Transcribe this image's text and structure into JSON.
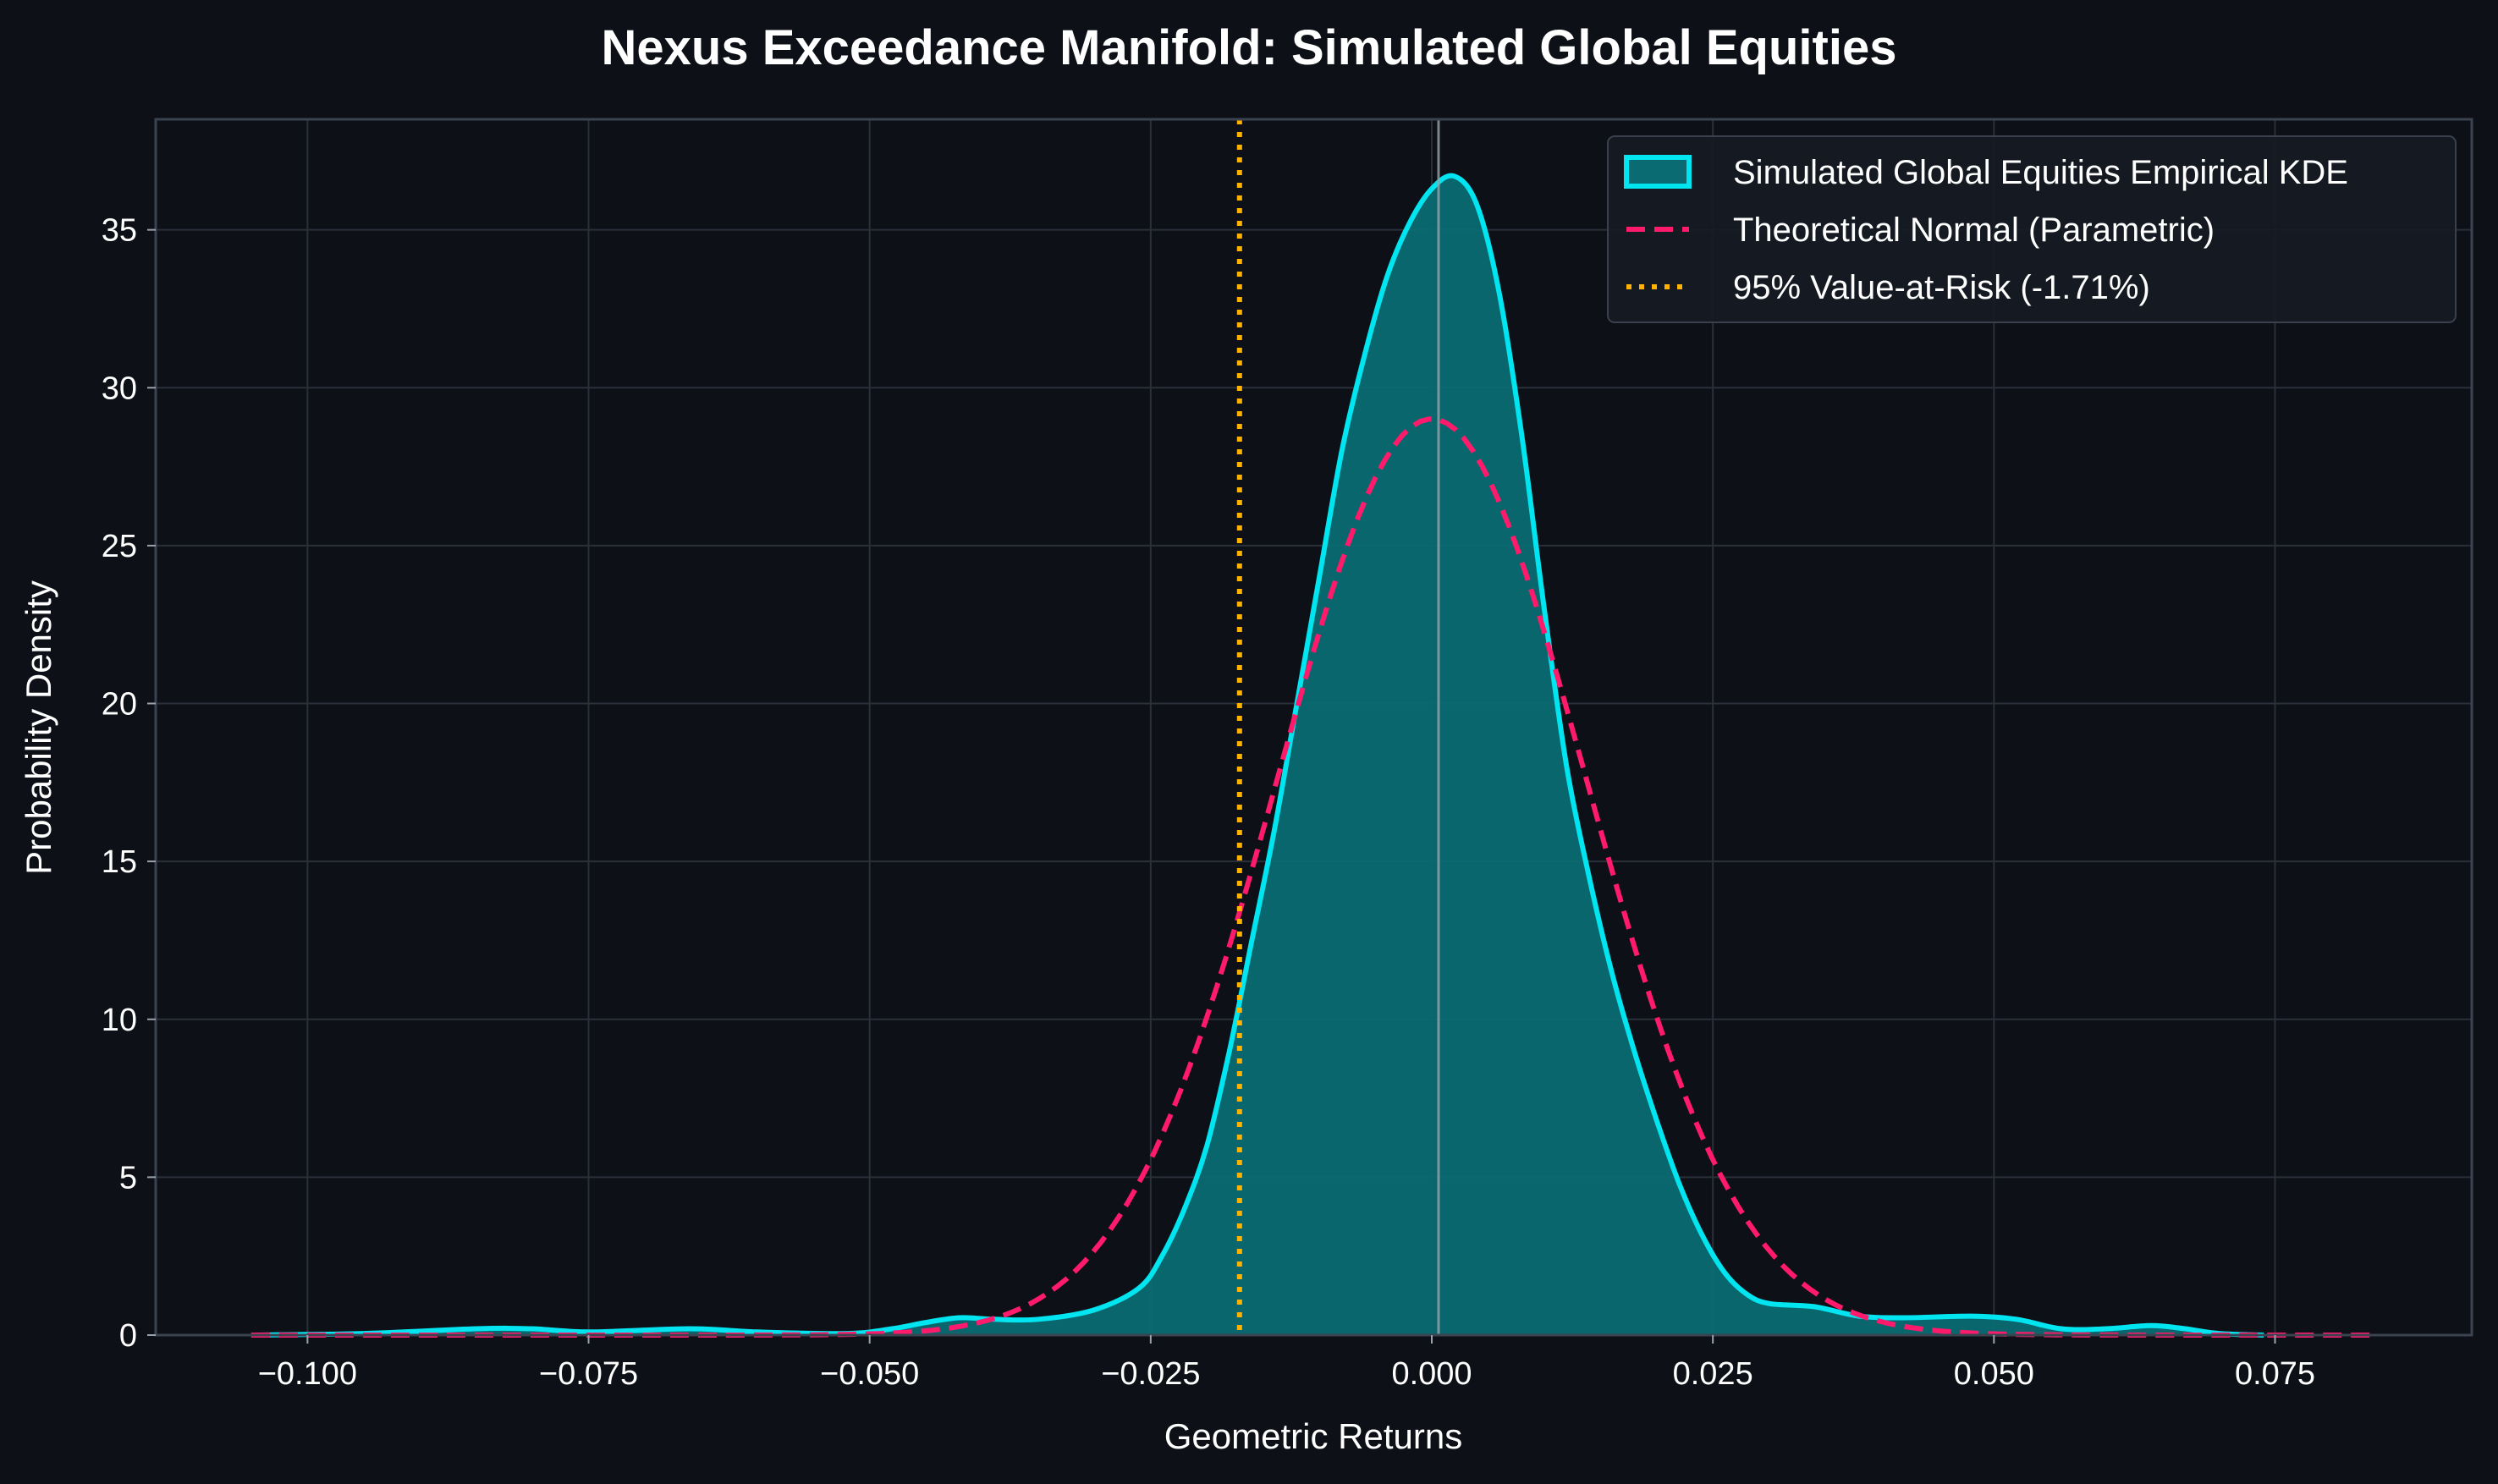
{
  "chart_data": {
    "type": "area",
    "title": "Nexus Exceedance Manifold: Simulated Global Equities",
    "xlabel": "Geometric Returns",
    "ylabel": "Probability Density",
    "xlim": [
      -0.1135,
      0.0925
    ],
    "ylim": [
      0,
      38.5
    ],
    "x_ticks": [
      -0.1,
      -0.075,
      -0.05,
      -0.025,
      0.0,
      0.025,
      0.05,
      0.075
    ],
    "x_tick_labels": [
      "−0.100",
      "−0.075",
      "−0.050",
      "−0.025",
      "0.000",
      "0.025",
      "0.050",
      "0.075"
    ],
    "y_ticks": [
      0,
      5,
      10,
      15,
      20,
      25,
      30,
      35
    ],
    "y_tick_labels": [
      "0",
      "5",
      "10",
      "15",
      "20",
      "25",
      "30",
      "35"
    ],
    "grid": true,
    "legend_position": "top-right",
    "series": [
      {
        "name": "Simulated Global Equities Empirical KDE",
        "kind": "kde_area",
        "color": "#00e5f0",
        "fill": "#0a6b72",
        "points": [
          [
            -0.105,
            0.0
          ],
          [
            -0.095,
            0.05
          ],
          [
            -0.085,
            0.2
          ],
          [
            -0.08,
            0.2
          ],
          [
            -0.075,
            0.1
          ],
          [
            -0.066,
            0.2
          ],
          [
            -0.06,
            0.1
          ],
          [
            -0.052,
            0.05
          ],
          [
            -0.048,
            0.2
          ],
          [
            -0.045,
            0.4
          ],
          [
            -0.042,
            0.55
          ],
          [
            -0.039,
            0.5
          ],
          [
            -0.035,
            0.5
          ],
          [
            -0.03,
            0.8
          ],
          [
            -0.026,
            1.5
          ],
          [
            -0.024,
            2.5
          ],
          [
            -0.022,
            4.0
          ],
          [
            -0.02,
            6.0
          ],
          [
            -0.018,
            9.0
          ],
          [
            -0.016,
            12.5
          ],
          [
            -0.014,
            16.0
          ],
          [
            -0.012,
            20.0
          ],
          [
            -0.01,
            24.0
          ],
          [
            -0.008,
            28.0
          ],
          [
            -0.006,
            31.0
          ],
          [
            -0.004,
            33.5
          ],
          [
            -0.002,
            35.2
          ],
          [
            0.0,
            36.3
          ],
          [
            0.002,
            36.7
          ],
          [
            0.004,
            35.8
          ],
          [
            0.006,
            33.0
          ],
          [
            0.008,
            28.5
          ],
          [
            0.01,
            23.0
          ],
          [
            0.012,
            18.0
          ],
          [
            0.014,
            14.5
          ],
          [
            0.016,
            11.5
          ],
          [
            0.018,
            9.0
          ],
          [
            0.02,
            6.8
          ],
          [
            0.022,
            4.8
          ],
          [
            0.024,
            3.2
          ],
          [
            0.026,
            2.0
          ],
          [
            0.028,
            1.3
          ],
          [
            0.03,
            1.0
          ],
          [
            0.034,
            0.9
          ],
          [
            0.038,
            0.6
          ],
          [
            0.042,
            0.55
          ],
          [
            0.048,
            0.6
          ],
          [
            0.052,
            0.5
          ],
          [
            0.056,
            0.2
          ],
          [
            0.06,
            0.2
          ],
          [
            0.064,
            0.3
          ],
          [
            0.067,
            0.2
          ],
          [
            0.07,
            0.05
          ],
          [
            0.074,
            0.0
          ]
        ]
      },
      {
        "name": "Theoretical Normal (Parametric)",
        "kind": "normal_curve",
        "color": "#ff1a6b",
        "mean": 0.0,
        "std": 0.01375,
        "x_range": [
          -0.105,
          0.084
        ]
      }
    ],
    "vlines": [
      {
        "name": "95% Value-at-Risk (-1.71%)",
        "x": -0.0171,
        "color": "#ffb300",
        "style": "dotted"
      },
      {
        "name": "",
        "x": 0.0006,
        "color": "#9aa3ad",
        "style": "solid"
      }
    ]
  }
}
